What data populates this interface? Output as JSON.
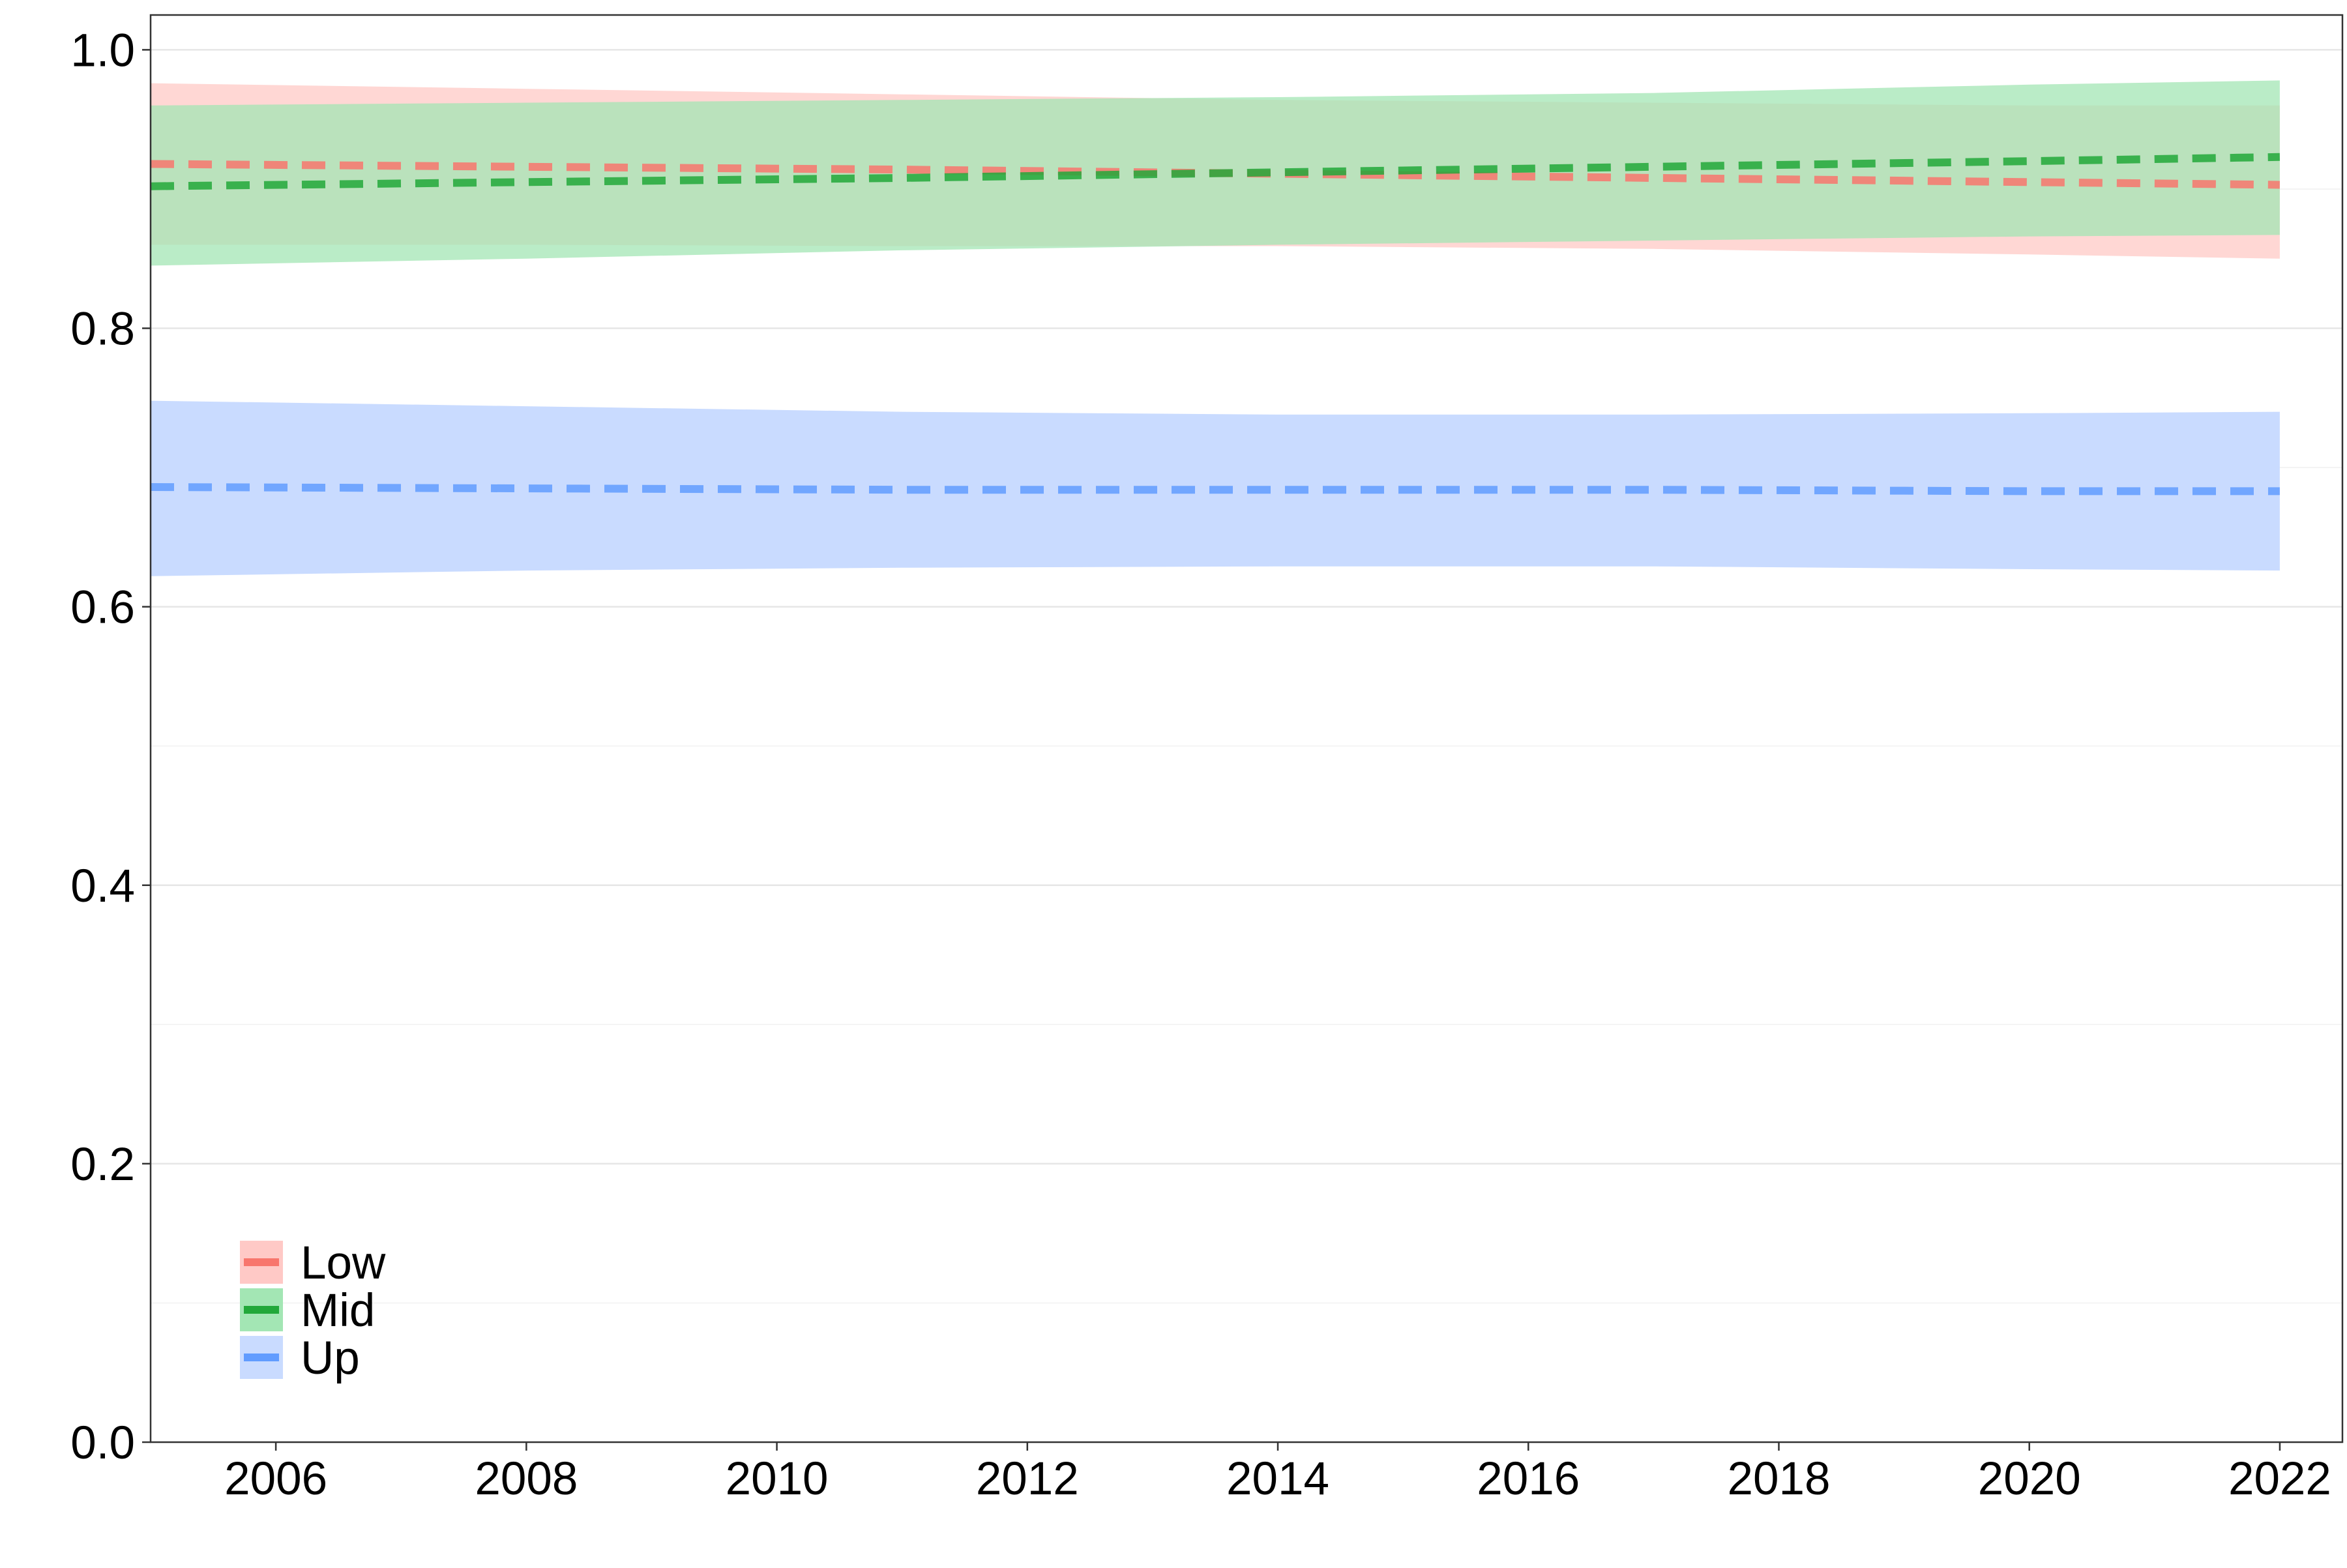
{
  "chart_data": {
    "type": "line",
    "title": "",
    "xlabel": "",
    "ylabel": "",
    "xlim": [
      2005,
      2022.5
    ],
    "ylim": [
      0,
      1.025
    ],
    "x_ticks": [
      2006,
      2008,
      2010,
      2012,
      2014,
      2016,
      2018,
      2020,
      2022
    ],
    "y_ticks": [
      0.0,
      0.2,
      0.4,
      0.6,
      0.8,
      1.0
    ],
    "x_tick_labels": [
      "2006",
      "2008",
      "2010",
      "2012",
      "2014",
      "2016",
      "2018",
      "2020",
      "2022"
    ],
    "y_tick_labels": [
      "0.0",
      "0.2",
      "0.4",
      "0.6",
      "0.8",
      "1.0"
    ],
    "grid": true,
    "line_style": "dashed",
    "legend_position": "bottom-left",
    "series": [
      {
        "name": "Low",
        "color": "#F8766D",
        "band_color": "#FFC9C6",
        "x": [
          2005,
          2008,
          2011,
          2014,
          2017,
          2020,
          2022
        ],
        "y": [
          0.918,
          0.916,
          0.914,
          0.911,
          0.908,
          0.905,
          0.903
        ],
        "lower": [
          0.86,
          0.86,
          0.859,
          0.859,
          0.857,
          0.853,
          0.85
        ],
        "upper": [
          0.976,
          0.972,
          0.968,
          0.964,
          0.962,
          0.96,
          0.96
        ]
      },
      {
        "name": "Mid",
        "color": "#22A83A",
        "band_color": "#A3E6B4",
        "x": [
          2005,
          2008,
          2011,
          2014,
          2017,
          2020,
          2022
        ],
        "y": [
          0.902,
          0.905,
          0.908,
          0.912,
          0.916,
          0.92,
          0.923
        ],
        "lower": [
          0.845,
          0.85,
          0.856,
          0.86,
          0.863,
          0.866,
          0.867
        ],
        "upper": [
          0.96,
          0.962,
          0.964,
          0.966,
          0.969,
          0.975,
          0.978
        ]
      },
      {
        "name": "Up",
        "color": "#619CFF",
        "band_color": "#C9DBFF",
        "x": [
          2005,
          2008,
          2011,
          2014,
          2017,
          2020,
          2022
        ],
        "y": [
          0.686,
          0.685,
          0.684,
          0.684,
          0.684,
          0.683,
          0.683
        ],
        "lower": [
          0.622,
          0.626,
          0.628,
          0.629,
          0.629,
          0.627,
          0.626
        ],
        "upper": [
          0.748,
          0.744,
          0.74,
          0.738,
          0.738,
          0.739,
          0.74
        ]
      }
    ]
  }
}
